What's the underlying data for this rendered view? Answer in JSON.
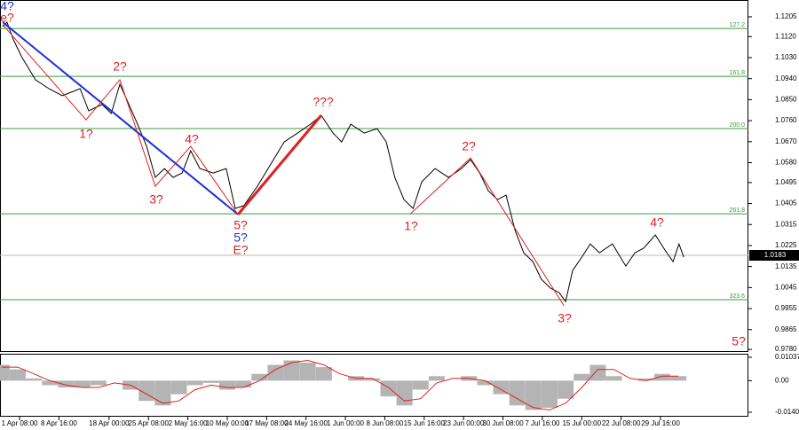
{
  "chart_data": [
    {
      "type": "line",
      "xlim": [
        -3.31,
        136.03
      ],
      "ylim": [
        0.9769,
        1.1277
      ],
      "yticks": [
        {
          "value": 1.1205,
          "label": "1.1205"
        },
        {
          "value": 1.112,
          "label": "1.1120"
        },
        {
          "value": 1.103,
          "label": "1.1030"
        },
        {
          "value": 1.094,
          "label": "1.0940"
        },
        {
          "value": 1.085,
          "label": "1.0850"
        },
        {
          "value": 1.076,
          "label": "1.0760"
        },
        {
          "value": 1.067,
          "label": "1.0670"
        },
        {
          "value": 1.058,
          "label": "1.0580"
        },
        {
          "value": 1.0495,
          "label": "1.0495"
        },
        {
          "value": 1.0405,
          "label": "1.0405"
        },
        {
          "value": 1.0315,
          "label": "1.0315"
        },
        {
          "value": 1.0225,
          "label": "1.0225"
        },
        {
          "value": 1.0135,
          "label": "1.0135"
        },
        {
          "value": 1.0045,
          "label": "1.0045"
        },
        {
          "value": 0.9955,
          "label": "0.9955"
        },
        {
          "value": 0.9865,
          "label": "0.9865"
        },
        {
          "value": 0.978,
          "label": "0.9780"
        }
      ],
      "levels": [
        {
          "value": 1.1155,
          "label": "127.2"
        },
        {
          "value": 1.095,
          "label": "161.8"
        },
        {
          "value": 1.0726,
          "label": "200.0"
        },
        {
          "value": 1.0361,
          "label": "261.8"
        },
        {
          "value": 0.9993,
          "label": "323.6"
        }
      ],
      "level_color": "#3c9a3c",
      "last_price": 1.0183,
      "series": [
        {
          "color": "#000000",
          "line_width": 1,
          "x": [
            -2.8,
            -2,
            -0.8,
            0.8,
            3.3,
            5.8,
            8.3,
            11.6,
            13.2,
            15.7,
            17.4,
            19,
            20.7,
            22.3,
            24,
            25.6,
            27.3,
            28.9,
            30.6,
            32.2,
            33.9,
            36.4,
            38.8,
            40.5,
            42.1,
            44.6,
            47.1,
            49.6,
            52.1,
            54.5,
            56.5,
            58.7,
            60.3,
            62,
            64.5,
            66.9,
            68.6,
            70.2,
            71.9,
            73.6,
            75.2,
            77.7,
            80.2,
            82.6,
            84.3,
            86,
            87.6,
            89.3,
            90.9,
            92.6,
            94.2,
            95.9,
            97.5,
            99.2,
            100.8,
            102,
            103.3,
            105,
            106.6,
            108.3,
            110.7,
            113.2,
            114.9,
            116.5,
            118.7,
            120.3,
            122,
            123.1,
            124
          ],
          "values": [
            1.1163,
            1.1182,
            1.1106,
            1.103,
            1.0935,
            1.0897,
            1.0867,
            1.0897,
            1.0802,
            1.0829,
            1.0791,
            1.0916,
            1.0829,
            1.0745,
            1.065,
            1.0517,
            1.0555,
            1.0517,
            1.0536,
            1.0631,
            1.0555,
            1.0536,
            1.0555,
            1.0384,
            1.0396,
            1.0479,
            1.0574,
            1.0669,
            1.0707,
            1.0745,
            1.0783,
            1.0707,
            1.0669,
            1.0745,
            1.0707,
            1.0726,
            1.0669,
            1.0517,
            1.0422,
            1.0384,
            1.0498,
            1.0555,
            1.0517,
            1.0555,
            1.0593,
            1.0536,
            1.046,
            1.0422,
            1.0441,
            1.0289,
            1.0194,
            1.0156,
            1.008,
            1.0042,
            1.0023,
            0.9985,
            1.0118,
            1.0175,
            1.0232,
            1.0194,
            1.0232,
            1.0137,
            1.0194,
            1.0213,
            1.027,
            1.0213,
            1.0156,
            1.0232,
            1.0175
          ]
        },
        {
          "color": "#1f2fd8",
          "line_width": 2,
          "x": [
            -2.8,
            41
          ],
          "values": [
            1.1182,
            1.0358
          ]
        },
        {
          "color": "#e02020",
          "line_width": 1,
          "x": [
            -2.8,
            12.7,
            19,
            25.6,
            32.2,
            41,
            56.5,
            73.1,
            84.3,
            101.7
          ],
          "values": [
            1.1171,
            1.0764,
            1.0935,
            1.0479,
            1.065,
            1.0358,
            null,
            1.0361,
            1.06,
            0.9967
          ]
        },
        {
          "color": "#e02020",
          "line_width": 3,
          "x": [
            41,
            56.5
          ],
          "values": [
            1.0358,
            1.0783
          ]
        }
      ],
      "annotations": [
        {
          "text": "4?",
          "color": "#1f2fd8"
        },
        {
          "text": "e?",
          "color": "#e02020"
        },
        {
          "text": "2?",
          "color": "#e02020"
        },
        {
          "text": "1?",
          "color": "#e02020"
        },
        {
          "text": "4?",
          "color": "#e02020"
        },
        {
          "text": "3?",
          "color": "#e02020"
        },
        {
          "text": "5?",
          "color": "#e02020"
        },
        {
          "text": "5?",
          "color": "#1f2fd8"
        },
        {
          "text": "E?",
          "color": "#e02020"
        },
        {
          "text": "???",
          "color": "#e02020"
        },
        {
          "text": "1?",
          "color": "#e02020"
        },
        {
          "text": "2?",
          "color": "#e02020"
        },
        {
          "text": "3?",
          "color": "#e02020"
        },
        {
          "text": "4?",
          "color": "#e02020"
        },
        {
          "text": "5?",
          "color": "#e02020"
        }
      ]
    },
    {
      "type": "bar",
      "xlim": [
        -3.31,
        136.03
      ],
      "ylim": [
        -0.016,
        0.01195
      ],
      "yticks": [
        0.01037,
        {
          "value": 0,
          "label": "0.00"
        },
        -0.01401
      ],
      "xticks": [
        {
          "value": 0.333,
          "label": "1 Apr 08:00"
        },
        {
          "value": 7.667,
          "label": "8 Apr 16:00"
        },
        {
          "value": 17,
          "label": "18 Apr 00:00"
        },
        {
          "value": 24.333,
          "label": "25 Apr 08:00"
        },
        {
          "value": 31.667,
          "label": "2 May 16:00"
        },
        {
          "value": 39,
          "label": "10 May 00:00"
        },
        {
          "value": 46.333,
          "label": "17 May 08:00"
        },
        {
          "value": 53.667,
          "label": "24 May 16:00"
        },
        {
          "value": 61,
          "label": "1 Jun 00:00"
        },
        {
          "value": 68.333,
          "label": "8 Jun 08:00"
        },
        {
          "value": 75.667,
          "label": "15 Jun 16:00"
        },
        {
          "value": 83,
          "label": "23 Jun 00:00"
        },
        {
          "value": 90.333,
          "label": "30 Jun 08:00"
        },
        {
          "value": 97.667,
          "label": "7 Jul 16:00"
        },
        {
          "value": 105,
          "label": "15 Jul 00:00"
        },
        {
          "value": 112.333,
          "label": "22 Jul 08:00"
        },
        {
          "value": 119.667,
          "label": "29 Jul 16:00"
        }
      ],
      "x": [
        -3,
        0,
        3,
        6,
        9,
        12,
        15,
        18,
        21,
        24,
        27,
        30,
        33,
        36,
        39,
        42,
        45,
        48,
        51,
        54,
        57,
        60,
        63,
        66,
        69,
        72,
        75,
        78,
        81,
        84,
        87,
        90,
        93,
        96,
        99,
        102,
        105,
        108,
        111,
        114,
        117,
        120,
        123
      ],
      "series": [
        {
          "color": "#b4b4b4",
          "values": [
            0.007,
            0.005,
            0.001,
            -0.002,
            -0.003,
            -0.003,
            -0.002,
            0,
            -0.004,
            -0.009,
            -0.011,
            -0.006,
            -0.002,
            -0.001,
            -0.004,
            -0.003,
            0.003,
            0.007,
            0.009,
            0.008,
            0.006,
            0,
            0.002,
            0.001,
            -0.007,
            -0.011,
            -0.004,
            0.002,
            0,
            0.002,
            -0.002,
            -0.006,
            -0.011,
            -0.013,
            -0.012,
            -0.008,
            0.003,
            0.007,
            0.002,
            0,
            0.001,
            0.003,
            0.002
          ]
        },
        {
          "color": "#e02020",
          "values": [
            0.006,
            0.006,
            0.003,
            0,
            -0.002,
            -0.003,
            -0.003,
            -0.001,
            -0.002,
            -0.006,
            -0.01,
            -0.009,
            -0.004,
            -0.002,
            -0.003,
            -0.003,
            0,
            0.005,
            0.008,
            0.009,
            0.007,
            0.003,
            0.001,
            0.001,
            -0.003,
            -0.009,
            -0.008,
            -0.001,
            0.001,
            0.001,
            0,
            -0.004,
            -0.008,
            -0.012,
            -0.013,
            -0.01,
            -0.003,
            0.005,
            0.005,
            0.001,
            0,
            0.002,
            0.002
          ]
        }
      ]
    }
  ]
}
